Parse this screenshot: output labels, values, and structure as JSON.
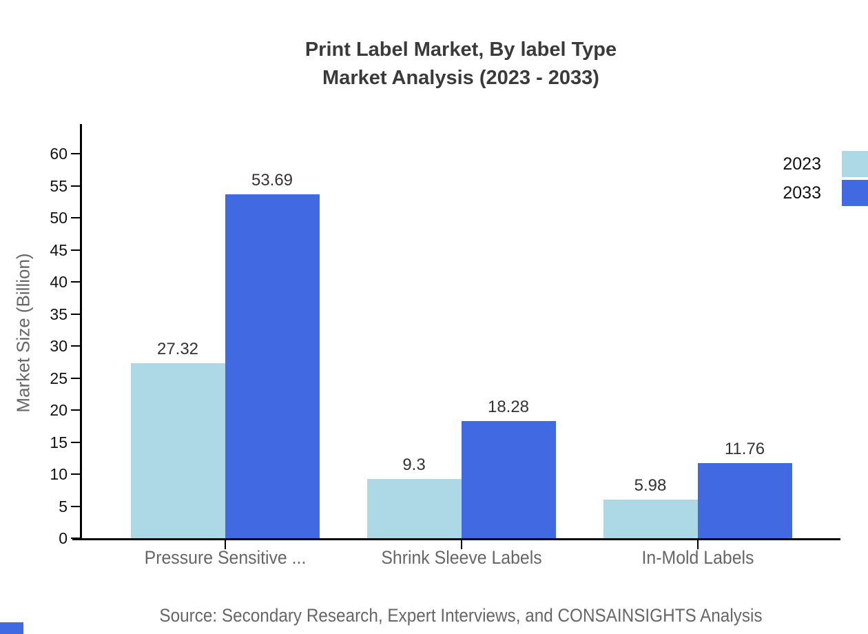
{
  "title": {
    "line1": "Print Label Market, By label Type",
    "line2": "Market Analysis (2023 - 2033)"
  },
  "y_axis_label": "Market Size (Billion)",
  "source_note": "Source: Secondary Research, Expert Interviews, and CONSAINSIGHTS Analysis",
  "legend": {
    "items": [
      {
        "label": "2023",
        "color": "#ADD8E6"
      },
      {
        "label": "2033",
        "color": "#4169E1"
      }
    ]
  },
  "colors": {
    "axis": "#000000",
    "title_text": "#3a3a3a",
    "tick_text": "#111111",
    "value_text": "#333333",
    "muted_text": "#666666",
    "series_2023": "#ADD8E6",
    "series_2033": "#4169E1",
    "corner_accent": "#4169E1"
  },
  "chart_data": {
    "type": "bar",
    "title": "Print Label Market, By label Type Market Analysis (2023 - 2033)",
    "categories": [
      "Pressure Sensitive ...",
      "Shrink Sleeve Labels",
      "In-Mold Labels"
    ],
    "series": [
      {
        "name": "2023",
        "color": "#ADD8E6",
        "values": [
          27.32,
          9.3,
          5.98
        ],
        "labels": [
          "27.32",
          "9.3",
          "5.98"
        ]
      },
      {
        "name": "2033",
        "color": "#4169E1",
        "values": [
          53.69,
          18.28,
          11.76
        ],
        "labels": [
          "53.69",
          "18.28",
          "11.76"
        ]
      }
    ],
    "xlabel": "",
    "ylabel": "Market Size (Billion)",
    "ylim": [
      0,
      60
    ],
    "ytick_step": 5,
    "yticks": [
      0,
      5,
      10,
      15,
      20,
      25,
      30,
      35,
      40,
      45,
      50,
      55,
      60
    ],
    "grid": false,
    "legend_position": "top-right"
  }
}
